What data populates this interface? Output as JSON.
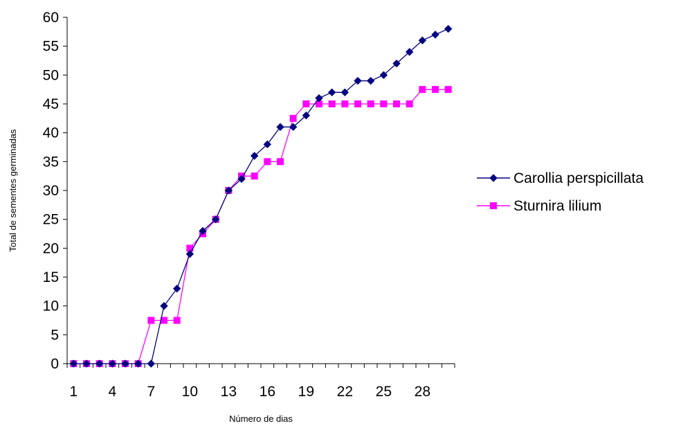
{
  "chart_data": {
    "type": "line",
    "title": "",
    "xlabel": "Número de dias",
    "ylabel": "Total de sementes germinadas",
    "x": [
      1,
      2,
      3,
      4,
      5,
      6,
      7,
      8,
      9,
      10,
      11,
      12,
      13,
      14,
      15,
      16,
      17,
      18,
      19,
      20,
      21,
      22,
      23,
      24,
      25,
      26,
      27,
      28,
      29,
      30
    ],
    "x_tick_labels": [
      "1",
      "4",
      "7",
      "10",
      "13",
      "16",
      "19",
      "22",
      "25",
      "28"
    ],
    "ylim": [
      0,
      60
    ],
    "y_ticks": [
      "0",
      "5",
      "10",
      "15",
      "20",
      "25",
      "30",
      "35",
      "40",
      "45",
      "50",
      "55",
      "60"
    ],
    "grid": false,
    "legend_position": "right",
    "series": [
      {
        "name": "Carollia perspicillata",
        "color": "#000080",
        "marker": "diamond",
        "values": [
          0,
          0,
          0,
          0,
          0,
          0,
          0,
          10,
          13,
          19,
          23,
          25,
          30,
          32,
          36,
          38,
          41,
          41,
          43,
          46,
          47,
          47,
          49,
          49,
          50,
          52,
          54,
          56,
          57,
          58
        ]
      },
      {
        "name": "Sturnira lilium",
        "color": "#FF00FF",
        "marker": "square",
        "values": [
          0,
          0,
          0,
          0,
          0,
          0,
          7.5,
          7.5,
          7.5,
          20,
          22.5,
          25,
          30,
          32.5,
          32.5,
          35,
          35,
          42.5,
          45,
          45,
          45,
          45,
          45,
          45,
          45,
          45,
          45,
          47.5,
          47.5,
          47.5
        ]
      }
    ]
  }
}
